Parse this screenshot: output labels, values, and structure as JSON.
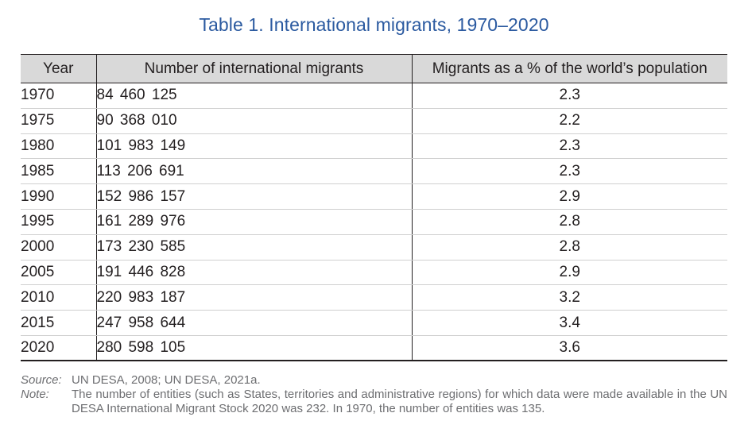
{
  "title": "Table 1. International migrants, 1970–2020",
  "table": {
    "headers": [
      "Year",
      "Number of international migrants",
      "Migrants as a % of the world’s population"
    ],
    "rows": [
      {
        "year": "1970",
        "migrants": "84 460 125",
        "percent": "2.3"
      },
      {
        "year": "1975",
        "migrants": "90 368  010",
        "percent": "2.2"
      },
      {
        "year": "1980",
        "migrants": "101 983 149",
        "percent": "2.3"
      },
      {
        "year": "1985",
        "migrants": "113 206 691",
        "percent": "2.3"
      },
      {
        "year": "1990",
        "migrants": "152 986 157",
        "percent": "2.9"
      },
      {
        "year": "1995",
        "migrants": "161 289 976",
        "percent": "2.8"
      },
      {
        "year": "2000",
        "migrants": "173 230 585",
        "percent": "2.8"
      },
      {
        "year": "2005",
        "migrants": "191 446 828",
        "percent": "2.9"
      },
      {
        "year": "2010",
        "migrants": "220 983 187",
        "percent": "3.2"
      },
      {
        "year": "2015",
        "migrants": "247 958 644",
        "percent": "3.4"
      },
      {
        "year": "2020",
        "migrants": "280 598 105",
        "percent": "3.6"
      }
    ]
  },
  "notes": {
    "source_label": "Source:",
    "source_text": "UN DESA, 2008; UN DESA, 2021a.",
    "note_label": "Note:",
    "note_text": "The number of entities (such as States, territories and administrative regions) for which data were made available in the UN DESA International Migrant Stock 2020 was 232. In 1970, the number of entities was 135."
  },
  "colors": {
    "title": "#2b5aa0",
    "header_bg": "#d9d9d9",
    "note_text": "#6d6e71"
  }
}
